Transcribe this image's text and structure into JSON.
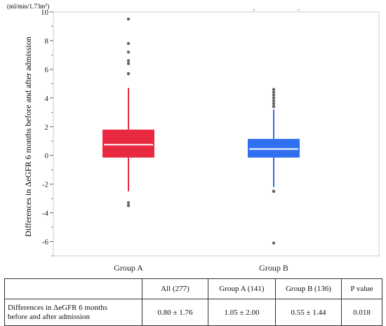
{
  "chart_data": {
    "type": "box",
    "unit_label": "(ml/min/1.73m",
    "unit_label_sup": "2",
    "unit_label_end": ")",
    "ylabel": "Differences in ΔeGFR 6 months before and after admission",
    "ylim": [
      -7,
      10
    ],
    "yticks": [
      -6,
      -4,
      -2,
      0,
      2,
      4,
      6,
      8,
      10
    ],
    "ytick_labels": [
      "-6",
      "-4",
      "-2",
      "0",
      "2",
      "4",
      "6",
      "8",
      "10"
    ],
    "groups": [
      {
        "name": "Group A",
        "color": "#e8293f",
        "median": 0.75,
        "q1": -0.15,
        "q3": 1.8,
        "whisker_low": -2.5,
        "whisker_high": 4.7,
        "outliers": [
          9.5,
          7.8,
          7.2,
          6.6,
          6.4,
          5.7,
          5.7,
          -3.3,
          -3.5
        ]
      },
      {
        "name": "Group B",
        "color": "#2f6ff0",
        "median": 0.45,
        "q1": -0.15,
        "q3": 1.15,
        "whisker_low": -2.2,
        "whisker_high": 3.2,
        "outliers": [
          4.6,
          4.4,
          4.2,
          4.0,
          3.8,
          3.6,
          3.4,
          -2.5,
          -2.5,
          -6.1
        ]
      }
    ]
  },
  "table": {
    "headers": [
      "",
      "All (277)",
      "Group A (141)",
      "Group B (136)",
      "P value"
    ],
    "row": {
      "label_line1": "Differences in ΔeGFR 6 months",
      "label_line2": "before and after admission",
      "cells": [
        "0.80 ± 1.76",
        "1.05 ± 2.00",
        "0.55 ± 1.44",
        "0.018"
      ]
    }
  }
}
